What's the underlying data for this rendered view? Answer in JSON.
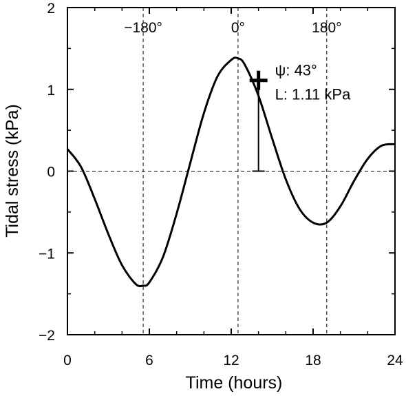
{
  "chart_data": {
    "type": "line",
    "xlabel": "Time (hours)",
    "ylabel": "Tidal stress (kPa)",
    "xlim": [
      0,
      24
    ],
    "ylim": [
      -2,
      2
    ],
    "x_ticks": [
      0,
      6,
      12,
      18,
      24
    ],
    "x_tick_labels": [
      "0",
      "6",
      "12",
      "18",
      "24"
    ],
    "y_ticks": [
      -2,
      -1,
      0,
      1,
      2
    ],
    "y_tick_labels": [
      "−2",
      "−1",
      "0",
      "1",
      "2"
    ],
    "zero_line": true,
    "phase_markers": [
      {
        "x": 5.55,
        "label": "−180°"
      },
      {
        "x": 12.5,
        "label": "0°"
      },
      {
        "x": 19.0,
        "label": "180°"
      }
    ],
    "series": [
      {
        "x": [
          0,
          1,
          2,
          3,
          4,
          5,
          5.55,
          6,
          7,
          8,
          9,
          10,
          11,
          12,
          12.5,
          13,
          14,
          15,
          16,
          17,
          18,
          19,
          20,
          21,
          22,
          23,
          24
        ],
        "values": [
          0.27,
          0.05,
          -0.34,
          -0.77,
          -1.15,
          -1.38,
          -1.4,
          -1.36,
          -1.05,
          -0.52,
          0.1,
          0.71,
          1.16,
          1.36,
          1.38,
          1.3,
          0.92,
          0.4,
          -0.1,
          -0.46,
          -0.63,
          -0.63,
          -0.43,
          -0.12,
          0.15,
          0.31,
          0.33
        ]
      }
    ],
    "event": {
      "x": 14.0,
      "y": 1.11,
      "annotation_psi": "ψ: 43°",
      "annotation_L": "L: 1.11 kPa"
    }
  }
}
